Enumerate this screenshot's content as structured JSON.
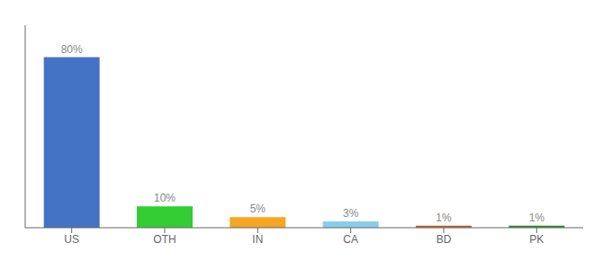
{
  "chart_data": {
    "type": "bar",
    "categories": [
      "US",
      "OTH",
      "IN",
      "CA",
      "BD",
      "PK"
    ],
    "values": [
      80,
      10,
      5,
      3,
      1,
      1
    ],
    "value_labels": [
      "80%",
      "10%",
      "5%",
      "3%",
      "1%",
      "1%"
    ],
    "data_labels": true,
    "colors": [
      "#4472c4",
      "#33cc33",
      "#f5a623",
      "#87ceeb",
      "#c0602a",
      "#2e8b2e"
    ],
    "ylim": [
      0,
      95
    ],
    "grid": false,
    "tick_labels": "x"
  }
}
